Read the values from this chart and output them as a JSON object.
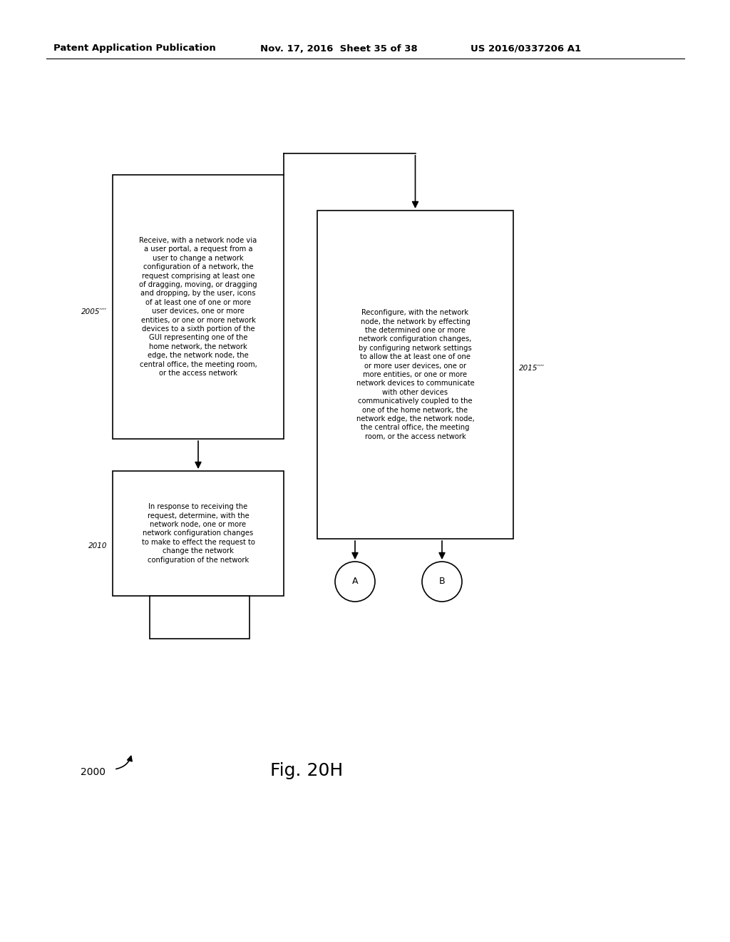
{
  "header_left": "Patent Application Publication",
  "header_mid": "Nov. 17, 2016  Sheet 35 of 38",
  "header_right": "US 2016/0337206 A1",
  "fig_label": "Fig. 20H",
  "fig_number": "2000",
  "box1_text": "Receive, with a network node via\na user portal, a request from a\nuser to change a network\nconfiguration of a network, the\nrequest comprising at least one\nof dragging, moving, or dragging\nand dropping, by the user, icons\nof at least one of one or more\nuser devices, one or more\nentities, or one or more network\ndevices to a sixth portion of the\nGUI representing one of the\nhome network, the network\nedge, the network node, the\ncentral office, the meeting room,\nor the access network",
  "box1_label": "2005′′′′",
  "box2_text": "In response to receiving the\nrequest, determine, with the\nnetwork node, one or more\nnetwork configuration changes\nto make to effect the request to\nchange the network\nconfiguration of the network",
  "box2_label": "2010",
  "box3_text": "Reconfigure, with the network\nnode, the network by effecting\nthe determined one or more\nnetwork configuration changes,\nby configuring network settings\nto allow the at least one of one\nor more user devices, one or\nmore entities, or one or more\nnetwork devices to communicate\nwith other devices\ncommunicatively coupled to the\none of the home network, the\nnetwork edge, the network node,\nthe central office, the meeting\nroom, or the access network",
  "box3_label": "2015′′′′",
  "circle_A": "A",
  "circle_B": "B",
  "bg_color": "#ffffff",
  "box_edge_color": "#000000",
  "text_color": "#000000",
  "arrow_color": "#000000"
}
